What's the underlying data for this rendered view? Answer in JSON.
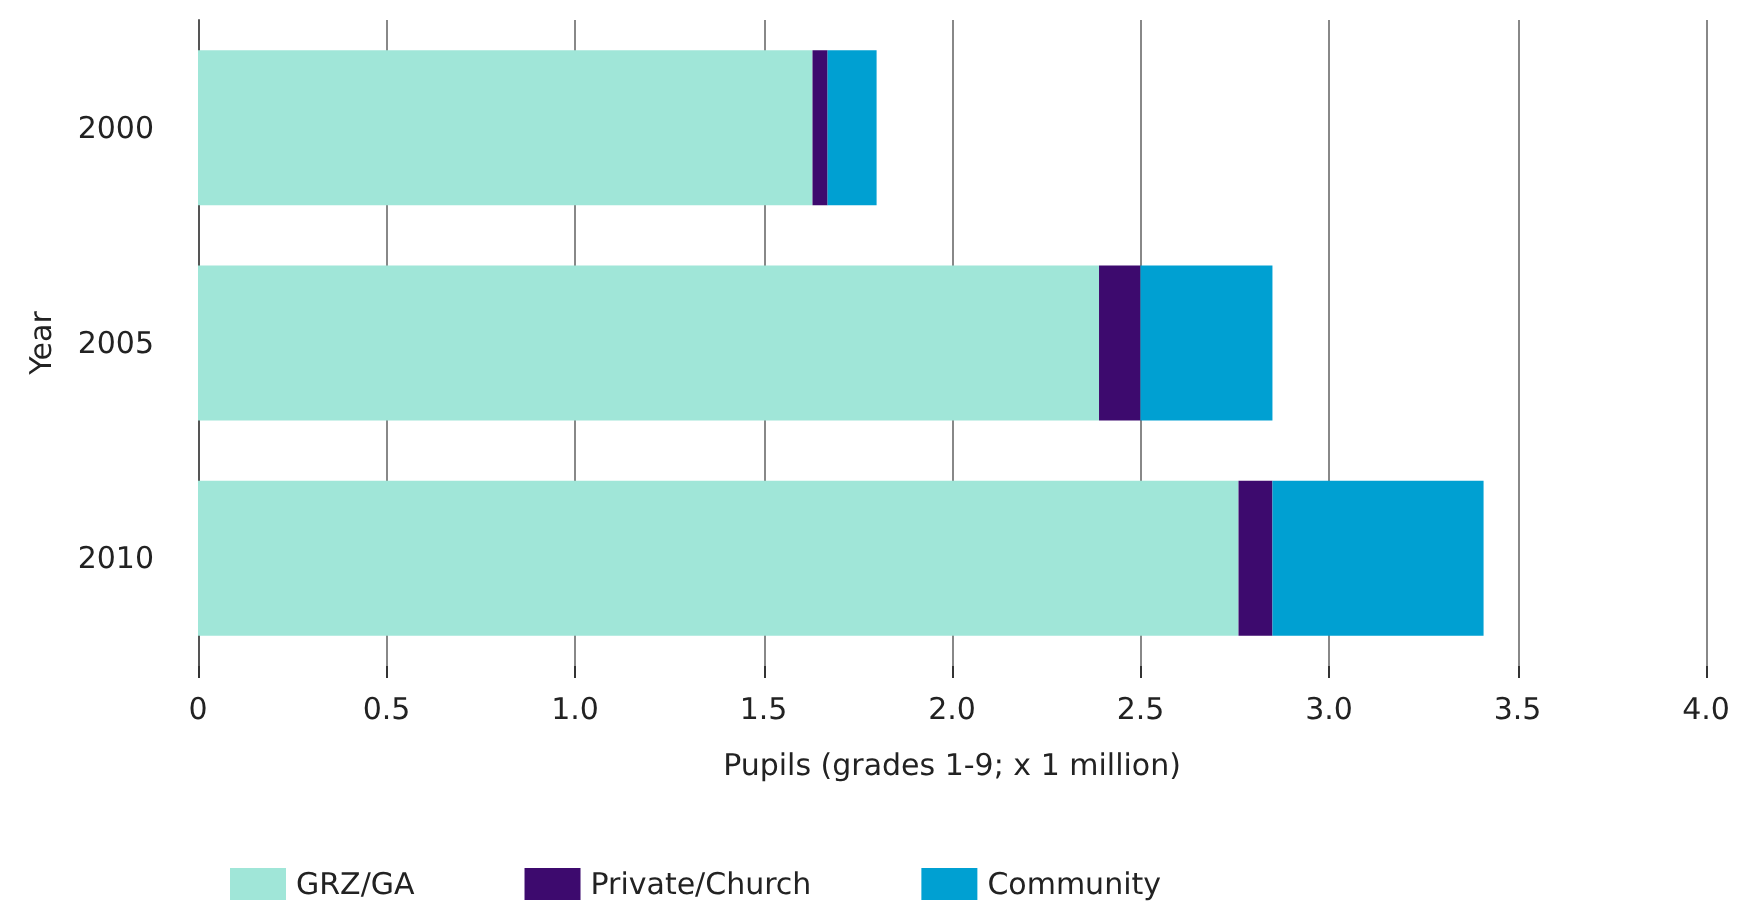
{
  "chart_data": {
    "type": "bar",
    "orientation": "horizontal",
    "stacked": true,
    "xlabel": "Pupils (grades 1-9; x 1 million)",
    "ylabel": "Year",
    "categories": [
      "2000",
      "2005",
      "2010"
    ],
    "series": [
      {
        "name": "GRZ/GA",
        "color": "#a0e6d8",
        "values": [
          1.63,
          2.39,
          2.76
        ]
      },
      {
        "name": "Private/Church",
        "color": "#3d0a6e",
        "values": [
          0.04,
          0.11,
          0.09
        ]
      },
      {
        "name": "Community",
        "color": "#00a0d2",
        "values": [
          0.13,
          0.35,
          0.56
        ]
      }
    ],
    "xlim": [
      0,
      4
    ],
    "xticks": [
      0,
      0.5,
      {
        "value": 1,
        "label": "1.0"
      },
      1.5,
      {
        "value": 2,
        "label": "2.0"
      },
      2.5,
      {
        "value": 3,
        "label": "3.0"
      },
      3.5,
      {
        "value": 4,
        "label": "4.0"
      }
    ],
    "grid": "x",
    "legend": "bottom left"
  }
}
